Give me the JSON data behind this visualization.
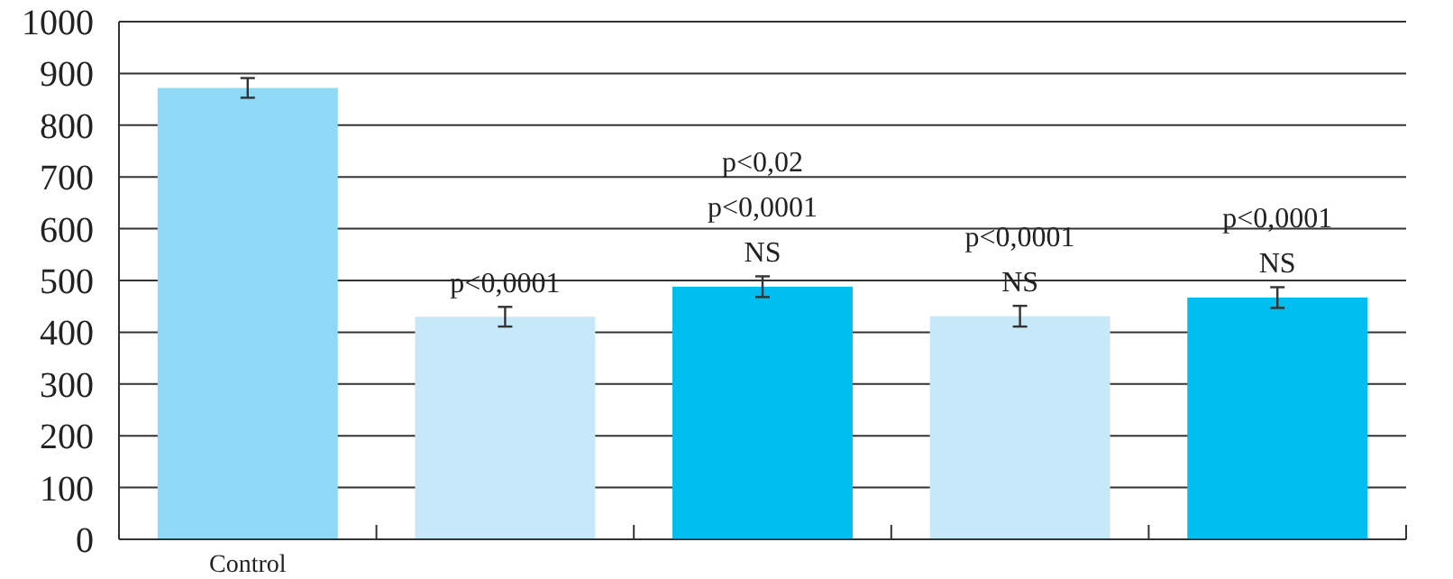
{
  "chart_data": {
    "type": "bar",
    "categories": [
      "Control",
      null,
      null,
      null,
      null
    ],
    "values": [
      872,
      430,
      488,
      431,
      467
    ],
    "colors": [
      "#8fd8f6",
      "#c6e8f8",
      "#00bff0",
      "#c6e8f8",
      "#00bff0"
    ],
    "errors": [
      19,
      19,
      20,
      20,
      20
    ],
    "ylim": [
      0,
      1000
    ],
    "yticks": [
      0,
      100,
      200,
      300,
      400,
      500,
      600,
      700,
      800,
      900,
      1000
    ],
    "grid": "y",
    "annotations": [
      "p<0,0001",
      "p<0,02\np<0,0001\nNS",
      "p<0,0001\nNS",
      "p<0,0001\nNS"
    ]
  }
}
